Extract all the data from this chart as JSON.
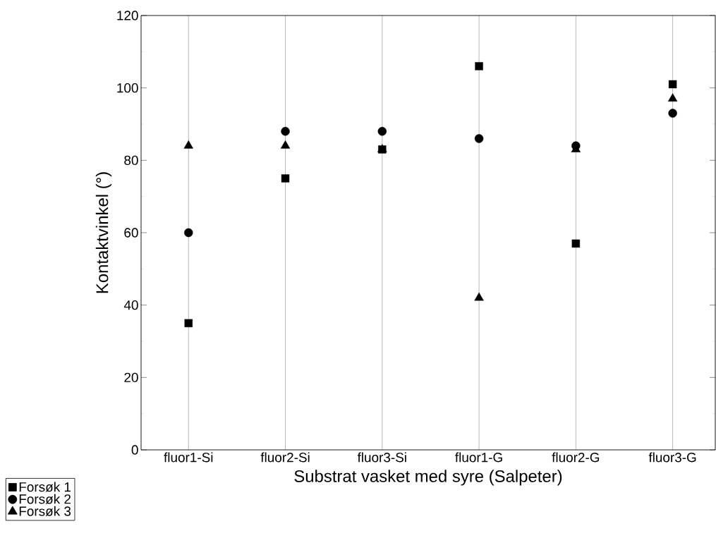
{
  "chart_data": {
    "type": "scatter",
    "xlabel": "Substrat vasket med syre (Salpeter)",
    "ylabel": "Kontaktvinkel (°)",
    "categories": [
      "fluor1-Si",
      "fluor2-Si",
      "fluor3-Si",
      "fluor1-G",
      "fluor2-G",
      "fluor3-G"
    ],
    "series": [
      {
        "name": "Forsøk 1",
        "color": "#000000",
        "marker": "square",
        "values": [
          35,
          75,
          83,
          106,
          57,
          101
        ]
      },
      {
        "name": "Forsøk 2",
        "color": "#000000",
        "marker": "circle",
        "values": [
          60,
          88,
          88,
          86,
          84,
          93
        ]
      },
      {
        "name": "Forsøk 3",
        "color": "#000000",
        "marker": "triangle",
        "values": [
          84,
          84,
          83,
          42,
          83,
          97
        ]
      }
    ],
    "ylim": [
      0,
      120
    ],
    "yticks": [
      0,
      20,
      40,
      60,
      80,
      100,
      120
    ],
    "grid": "x",
    "legend": "bottom left"
  }
}
